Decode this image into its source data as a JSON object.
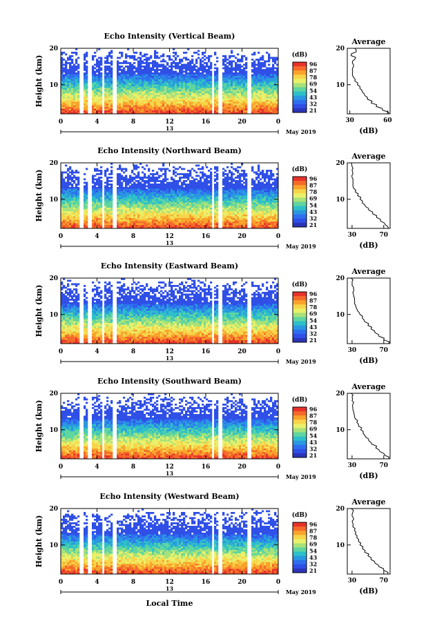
{
  "figure": {
    "xlabel": "Local Time",
    "date_label": "May 2019",
    "axis_day": "13"
  },
  "colorbar": {
    "unit": "(dB)",
    "ticks": [
      "96",
      "87",
      "78",
      "69",
      "54",
      "43",
      "32",
      "21"
    ],
    "colors": [
      "#e8322a",
      "#f56a2a",
      "#f9a32c",
      "#f7d54a",
      "#e9f06a",
      "#a7e27a",
      "#5fd5a0",
      "#2ec0c8",
      "#2a98e0",
      "#2e6ff0",
      "#2f4fe6",
      "#2b35b8"
    ]
  },
  "chart_data": [
    {
      "type": "heatmap",
      "title": "Echo Intensity (Vertical Beam)",
      "ylabel": "Height (km)",
      "x_ticks": [
        "0",
        "4",
        "8",
        "12",
        "16",
        "20",
        "0"
      ],
      "y_ticks": [
        "20",
        "10"
      ],
      "xlim": [
        0,
        24
      ],
      "ylim": [
        2,
        20
      ],
      "profile": {
        "title": "Average",
        "xlabel": "(dB)",
        "x_ticks": [
          "30",
          "60"
        ],
        "y_ticks": [
          "20",
          "10"
        ],
        "xlim": [
          28,
          62
        ],
        "height_km": [
          2,
          3,
          4,
          5,
          6,
          7,
          8,
          9,
          10,
          11,
          12,
          13,
          14,
          15,
          16,
          17,
          18,
          19,
          20
        ],
        "values": [
          61,
          56,
          51,
          47,
          44,
          42,
          40,
          38,
          36,
          34,
          33,
          32,
          32,
          33,
          32,
          34,
          31,
          35,
          34
        ]
      }
    },
    {
      "type": "heatmap",
      "title": "Echo Intensity (Northward Beam)",
      "ylabel": "Height (km)",
      "x_ticks": [
        "0",
        "4",
        "8",
        "12",
        "16",
        "20",
        "0"
      ],
      "y_ticks": [
        "20",
        "10"
      ],
      "xlim": [
        0,
        24
      ],
      "ylim": [
        2,
        20
      ],
      "profile": {
        "title": "Average",
        "xlabel": "(dB)",
        "x_ticks": [
          "30",
          "70"
        ],
        "y_ticks": [
          "20",
          "10"
        ],
        "xlim": [
          24,
          78
        ],
        "height_km": [
          2,
          3,
          4,
          5,
          6,
          7,
          8,
          9,
          10,
          11,
          12,
          13,
          14,
          15,
          16,
          17,
          18,
          19,
          20
        ],
        "values": [
          76,
          72,
          66,
          61,
          56,
          51,
          47,
          43,
          40,
          37,
          34,
          32,
          31,
          31,
          30,
          31,
          30,
          30,
          29
        ]
      }
    },
    {
      "type": "heatmap",
      "title": "Echo Intensity (Eastward Beam)",
      "ylabel": "Height (km)",
      "x_ticks": [
        "0",
        "4",
        "8",
        "12",
        "16",
        "20",
        "0"
      ],
      "y_ticks": [
        "20",
        "10"
      ],
      "xlim": [
        0,
        24
      ],
      "ylim": [
        2,
        20
      ],
      "profile": {
        "title": "Average",
        "xlabel": "(dB)",
        "x_ticks": [
          "30",
          "70"
        ],
        "y_ticks": [
          "20",
          "10"
        ],
        "xlim": [
          24,
          78
        ],
        "height_km": [
          2,
          3,
          4,
          5,
          6,
          7,
          8,
          9,
          10,
          11,
          12,
          13,
          14,
          15,
          16,
          17,
          18,
          19,
          20
        ],
        "values": [
          76,
          70,
          64,
          59,
          54,
          50,
          46,
          43,
          40,
          37,
          35,
          33,
          33,
          32,
          31,
          32,
          30,
          30,
          29
        ]
      }
    },
    {
      "type": "heatmap",
      "title": "Echo Intensity (Southward Beam)",
      "ylabel": "Height (km)",
      "x_ticks": [
        "0",
        "4",
        "8",
        "12",
        "16",
        "20",
        "0"
      ],
      "y_ticks": [
        "20",
        "10"
      ],
      "xlim": [
        0,
        24
      ],
      "ylim": [
        2,
        20
      ],
      "profile": {
        "title": "Average",
        "xlabel": "(dB)",
        "x_ticks": [
          "30",
          "70"
        ],
        "y_ticks": [
          "20",
          "10"
        ],
        "xlim": [
          24,
          78
        ],
        "height_km": [
          2,
          3,
          4,
          5,
          6,
          7,
          8,
          9,
          10,
          11,
          12,
          13,
          14,
          15,
          16,
          17,
          18,
          19,
          20
        ],
        "values": [
          76,
          71,
          65,
          60,
          55,
          51,
          47,
          44,
          41,
          38,
          36,
          34,
          33,
          32,
          31,
          31,
          30,
          30,
          29
        ]
      }
    },
    {
      "type": "heatmap",
      "title": "Echo Intensity (Westward Beam)",
      "ylabel": "Height (km)",
      "x_ticks": [
        "0",
        "4",
        "8",
        "12",
        "16",
        "20",
        "0"
      ],
      "y_ticks": [
        "20",
        "10"
      ],
      "xlim": [
        0,
        24
      ],
      "ylim": [
        2,
        20
      ],
      "profile": {
        "title": "Average",
        "xlabel": "(dB)",
        "x_ticks": [
          "30",
          "70"
        ],
        "y_ticks": [
          "20",
          "10"
        ],
        "xlim": [
          24,
          78
        ],
        "height_km": [
          2,
          3,
          4,
          5,
          6,
          7,
          8,
          9,
          10,
          11,
          12,
          13,
          14,
          15,
          16,
          17,
          18,
          19,
          20
        ],
        "values": [
          75,
          70,
          64,
          59,
          54,
          50,
          46,
          43,
          40,
          38,
          36,
          34,
          33,
          31,
          31,
          32,
          30,
          31,
          29
        ]
      }
    }
  ]
}
